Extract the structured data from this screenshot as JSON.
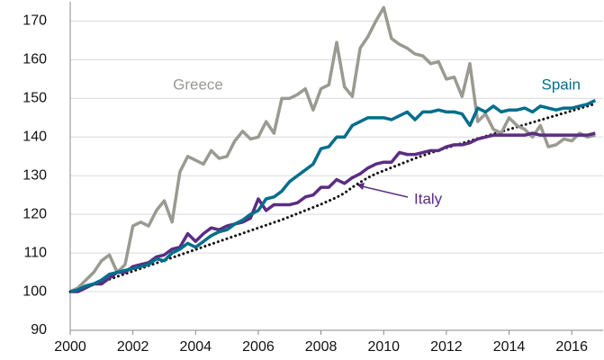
{
  "chart_data": {
    "type": "line",
    "x": [
      2000,
      2000.25,
      2000.5,
      2000.75,
      2001,
      2001.25,
      2001.5,
      2001.75,
      2002,
      2002.25,
      2002.5,
      2002.75,
      2003,
      2003.25,
      2003.5,
      2003.75,
      2004,
      2004.25,
      2004.5,
      2004.75,
      2005,
      2005.25,
      2005.5,
      2005.75,
      2006,
      2006.25,
      2006.5,
      2006.75,
      2007,
      2007.25,
      2007.5,
      2007.75,
      2008,
      2008.25,
      2008.5,
      2008.75,
      2009,
      2009.25,
      2009.5,
      2009.75,
      2010,
      2010.25,
      2010.5,
      2010.75,
      2011,
      2011.25,
      2011.5,
      2011.75,
      2012,
      2012.25,
      2012.5,
      2012.75,
      2013,
      2013.25,
      2013.5,
      2013.75,
      2014,
      2014.25,
      2014.5,
      2014.75,
      2015,
      2015.25,
      2015.5,
      2015.75,
      2016,
      2016.25,
      2016.5,
      2016.75
    ],
    "series": [
      {
        "name": "Greece",
        "color": "#9a9a92",
        "values": [
          100,
          101,
          103,
          105,
          108,
          109.5,
          105,
          107,
          117,
          118,
          117,
          121,
          123.5,
          118,
          131,
          135,
          134,
          133,
          136.5,
          134.5,
          135,
          139,
          141.5,
          139.5,
          140,
          144,
          141,
          150,
          150,
          151,
          152.5,
          147,
          152.5,
          153.5,
          164.5,
          153,
          150.5,
          163,
          166,
          170,
          173.5,
          165.5,
          164,
          163,
          161.5,
          161,
          159,
          159.5,
          155,
          155.5,
          150.5,
          159,
          144,
          146,
          142,
          141,
          145,
          143,
          142,
          140,
          143,
          137.5,
          138,
          139.5,
          139,
          141,
          140,
          140.5
        ]
      },
      {
        "name": "Spain",
        "color": "#006e8c",
        "values": [
          100,
          100.5,
          101.5,
          102,
          103,
          104.5,
          105,
          105.5,
          106,
          106.5,
          107,
          108.5,
          108,
          110,
          111,
          112.5,
          111.5,
          113,
          114.5,
          115.5,
          116,
          117.5,
          118.5,
          120,
          121,
          124,
          124.5,
          126,
          128.5,
          130,
          131.5,
          133,
          137,
          137.5,
          140,
          140,
          143,
          144,
          145,
          145,
          145,
          144.5,
          145.5,
          146.5,
          144.5,
          146.5,
          146.5,
          147,
          146.5,
          146.5,
          146,
          143,
          147.5,
          146.5,
          148,
          146.5,
          147,
          147,
          147.5,
          146.5,
          148,
          147.5,
          147,
          147.5,
          147.5,
          148,
          148.5,
          149.5
        ]
      },
      {
        "name": "Italy",
        "color": "#5b2d82",
        "values": [
          100,
          100,
          101,
          102,
          102,
          103.5,
          105,
          105,
          106.5,
          107,
          107.5,
          109,
          109.5,
          111,
          111.5,
          115,
          113,
          115,
          116.5,
          116,
          117,
          117.5,
          118,
          119,
          124,
          121,
          122.5,
          122.5,
          122.5,
          123,
          124.5,
          125,
          127,
          127,
          129,
          128,
          129.5,
          130.5,
          132,
          133,
          133.5,
          133.5,
          136,
          135.5,
          135.5,
          136,
          136.5,
          136.5,
          137.5,
          138,
          138,
          138.5,
          139.5,
          140,
          140.5,
          140.5,
          140.5,
          140.5,
          140.5,
          141,
          140.5,
          140.5,
          140.5,
          140.5,
          140.5,
          140.5,
          140.5,
          141
        ]
      },
      {
        "color": "#111111",
        "dotted": true,
        "values": [
          100,
          100.6,
          101.2,
          101.8,
          102.5,
          103.2,
          103.9,
          104.6,
          105.3,
          106,
          106.7,
          107.4,
          108.1,
          108.8,
          109.5,
          110.2,
          110.9,
          111.6,
          112.3,
          113,
          113.7,
          114.4,
          115.1,
          115.8,
          116.5,
          117.2,
          117.9,
          118.6,
          119.4,
          120.2,
          121,
          121.8,
          122.6,
          123.5,
          124.4,
          125.5,
          127,
          128.3,
          129.5,
          130.5,
          131.3,
          132.1,
          132.9,
          133.7,
          134.5,
          135.2,
          135.9,
          136.6,
          137.2,
          137.8,
          138.4,
          139,
          139.6,
          140.2,
          140.8,
          141.4,
          142,
          142.6,
          143.2,
          143.8,
          144.4,
          145,
          145.6,
          146.2,
          146.8,
          147.4,
          148,
          148.6
        ]
      }
    ],
    "xlim": [
      2000,
      2017
    ],
    "xticks": [
      2000,
      2002,
      2004,
      2006,
      2008,
      2010,
      2012,
      2014,
      2016
    ],
    "ylim": [
      90,
      175
    ],
    "yticks": [
      90,
      100,
      110,
      120,
      130,
      140,
      150,
      160,
      170
    ],
    "grid": true
  }
}
